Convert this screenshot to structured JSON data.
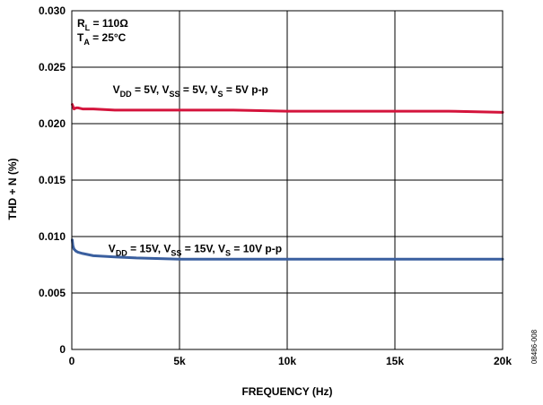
{
  "chart_data": {
    "type": "line",
    "xlabel": "FREQUENCY (Hz)",
    "ylabel": "THD + N (%)",
    "xlim": [
      0,
      20000
    ],
    "ylim": [
      0,
      0.03
    ],
    "grid": true,
    "x_tick_values": [
      0,
      5000,
      10000,
      15000,
      20000
    ],
    "x_tick_labels": [
      "0",
      "5k",
      "10k",
      "15k",
      "20k"
    ],
    "y_tick_values": [
      0,
      0.005,
      0.01,
      0.015,
      0.02,
      0.025,
      0.03
    ],
    "y_tick_labels": [
      "0",
      "0.005",
      "0.010",
      "0.015",
      "0.020",
      "0.025",
      "0.030"
    ],
    "conditions": {
      "rl": {
        "main": "R",
        "sub": "L",
        "rest": " = 110Ω"
      },
      "ta": {
        "main": "T",
        "sub": "A",
        "rest": " = 25°C"
      }
    },
    "series": [
      {
        "color": "#d4143c",
        "label_parts": [
          {
            "main": "V",
            "sub": "DD",
            "rest": " = 5V, "
          },
          {
            "main": "V",
            "sub": "SS",
            "rest": " = 5V, "
          },
          {
            "main": "V",
            "sub": "S",
            "rest": " = 5V p-p"
          }
        ],
        "label_anchor": {
          "x": 1900,
          "y": 0.0227
        },
        "x": [
          20,
          100,
          200,
          300,
          500,
          1000,
          2000,
          3000,
          5000,
          7500,
          10000,
          12500,
          15000,
          17500,
          20000
        ],
        "y": [
          0.0217,
          0.0213,
          0.0214,
          0.0214,
          0.0213,
          0.0213,
          0.0212,
          0.0212,
          0.0212,
          0.0212,
          0.0211,
          0.0211,
          0.0211,
          0.0211,
          0.021
        ]
      },
      {
        "color": "#3a5f9f",
        "label_parts": [
          {
            "main": "V",
            "sub": "DD",
            "rest": " = 15V, "
          },
          {
            "main": "V",
            "sub": "SS",
            "rest": " = 15V, "
          },
          {
            "main": "V",
            "sub": "S",
            "rest": " = 10V p-p"
          }
        ],
        "label_anchor": {
          "x": 1700,
          "y": 0.0086
        },
        "x": [
          20,
          50,
          100,
          200,
          300,
          500,
          1000,
          2000,
          3000,
          5000,
          7500,
          10000,
          12500,
          15000,
          17500,
          20000
        ],
        "y": [
          0.0097,
          0.0092,
          0.0089,
          0.0087,
          0.0086,
          0.0085,
          0.0083,
          0.0082,
          0.0081,
          0.008,
          0.008,
          0.008,
          0.008,
          0.008,
          0.008,
          0.008
        ]
      }
    ],
    "figure_id": "08486-008"
  }
}
